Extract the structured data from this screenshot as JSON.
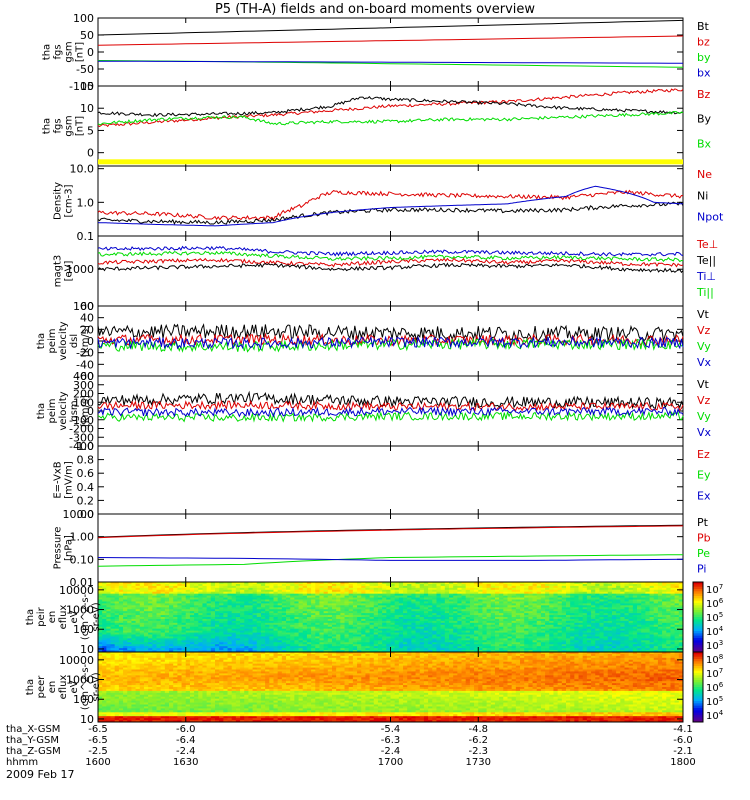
{
  "title": "P5 (TH-A) fields and on-board moments overview",
  "date_label": "2009 Feb 17",
  "colors": {
    "black": "#000000",
    "red": "#dd0000",
    "green": "#00dd00",
    "blue": "#0000cc",
    "yellow": "#ffff00"
  },
  "chart_data": [
    {
      "type": "line",
      "panel": "fgs-gsm",
      "ylabel": [
        "tha",
        "fgs",
        "gsm",
        "[nT]"
      ],
      "ylim": [
        -100,
        100
      ],
      "yticks": [
        "100",
        "50",
        "0",
        "-50",
        "-100"
      ],
      "ytick_values": [
        100,
        50,
        0,
        -50,
        -100
      ],
      "series": [
        {
          "name": "Bt",
          "color": "#000000",
          "x": [
            1600,
            1800
          ],
          "y": [
            50,
            93
          ]
        },
        {
          "name": "bz",
          "color": "#dd0000",
          "x": [
            1600,
            1800
          ],
          "y": [
            20,
            47
          ]
        },
        {
          "name": "by",
          "color": "#00dd00",
          "x": [
            1600,
            1640,
            1800
          ],
          "y": [
            -25,
            -28,
            -45
          ]
        },
        {
          "name": "bx",
          "color": "#0000cc",
          "x": [
            1600,
            1800
          ],
          "y": [
            -27,
            -33
          ]
        }
      ]
    },
    {
      "type": "line",
      "panel": "fgs-gsm-zoom",
      "ylabel": [
        "tha",
        "fgs",
        "gsm",
        "[nT]"
      ],
      "ylim": [
        -3,
        15
      ],
      "yticks": [
        "15",
        "10",
        "5",
        "0"
      ],
      "ytick_values": [
        15,
        10,
        5,
        0
      ],
      "series": [
        {
          "name": "Bz",
          "color": "#dd0000",
          "x": [
            1600,
            1640,
            1660,
            1680,
            1700,
            1720,
            1740,
            1760,
            1780,
            1800
          ],
          "y": [
            6.0,
            7.8,
            8.5,
            9.5,
            10.5,
            11.0,
            11.5,
            12.5,
            13.5,
            14.2
          ]
        },
        {
          "name": "By",
          "color": "#000000",
          "x": [
            1600,
            1620,
            1640,
            1660,
            1680,
            1690,
            1700,
            1720,
            1740,
            1760,
            1780,
            1800
          ],
          "y": [
            9.0,
            8.5,
            8.7,
            9.0,
            10.5,
            12.5,
            12.0,
            11.5,
            11.0,
            10.0,
            9.5,
            9.0
          ]
        },
        {
          "name": "Bx",
          "color": "#00dd00",
          "x": [
            1600,
            1620,
            1640,
            1650,
            1660,
            1680,
            1700,
            1720,
            1740,
            1760,
            1780,
            1800
          ],
          "y": [
            6.5,
            7.5,
            8.0,
            8.0,
            6.5,
            7.0,
            7.0,
            7.5,
            7.5,
            8.0,
            8.5,
            9.0
          ]
        }
      ],
      "legend": [
        "Bz",
        "By",
        "Bx"
      ]
    },
    {
      "type": "line",
      "panel": "density",
      "scale": "log",
      "ylabel": [
        "Density",
        "[cm-3]"
      ],
      "ylim": [
        0.1,
        12
      ],
      "yticks": [
        "10.0",
        "1.0",
        "0.1"
      ],
      "ytick_values": [
        10,
        1,
        0.1
      ],
      "series": [
        {
          "name": "Ne",
          "color": "#dd0000",
          "x": [
            1600,
            1620,
            1640,
            1660,
            1670,
            1680,
            1700,
            1720,
            1740,
            1760,
            1780,
            1800
          ],
          "y": [
            0.5,
            0.45,
            0.35,
            0.35,
            0.8,
            2.0,
            1.8,
            1.6,
            1.5,
            1.4,
            2.0,
            1.5
          ]
        },
        {
          "name": "Ni",
          "color": "#000000",
          "x": [
            1600,
            1620,
            1640,
            1660,
            1680,
            1700,
            1720,
            1740,
            1760,
            1780,
            1800
          ],
          "y": [
            0.3,
            0.27,
            0.25,
            0.3,
            0.5,
            0.6,
            0.6,
            0.55,
            0.6,
            0.8,
            0.9
          ]
        },
        {
          "name": "Npot",
          "color": "#0000cc",
          "x": [
            1600,
            1620,
            1640,
            1660,
            1680,
            1700,
            1720,
            1740,
            1760,
            1770,
            1790,
            1800
          ],
          "y": [
            0.25,
            0.22,
            0.2,
            0.25,
            0.5,
            0.7,
            0.8,
            0.9,
            1.5,
            3.0,
            1.0,
            0.9
          ]
        }
      ]
    },
    {
      "type": "line",
      "panel": "temperature",
      "scale": "log",
      "ylabel": [
        "magt3",
        "[eV]"
      ],
      "ylim": [
        100,
        8000
      ],
      "yticks": [
        "1000",
        "100"
      ],
      "ytick_values": [
        1000,
        100
      ],
      "series": [
        {
          "name": "Te⊥",
          "color": "#dd0000",
          "x": [
            1600,
            1640,
            1660,
            1680,
            1700,
            1720,
            1740,
            1760,
            1780,
            1800
          ],
          "y": [
            1500,
            1800,
            1500,
            1300,
            1600,
            1800,
            1500,
            1700,
            1400,
            1300
          ]
        },
        {
          "name": "Te||",
          "color": "#000000",
          "x": [
            1600,
            1640,
            1660,
            1680,
            1700,
            1720,
            1740,
            1760,
            1780,
            1800
          ],
          "y": [
            1000,
            1200,
            1300,
            1000,
            1100,
            1300,
            1200,
            1300,
            1000,
            900
          ]
        },
        {
          "name": "Ti⊥",
          "color": "#0000cc",
          "x": [
            1600,
            1640,
            1660,
            1680,
            1700,
            1720,
            1740,
            1760,
            1780,
            1800
          ],
          "y": [
            3500,
            3800,
            3000,
            2600,
            2800,
            3000,
            2800,
            2700,
            2500,
            2600
          ]
        },
        {
          "name": "Ti||",
          "color": "#00dd00",
          "x": [
            1600,
            1640,
            1660,
            1680,
            1700,
            1720,
            1740,
            1760,
            1780,
            1800
          ],
          "y": [
            2500,
            2800,
            2300,
            1900,
            2000,
            2200,
            2000,
            2100,
            1900,
            1800
          ]
        }
      ]
    },
    {
      "type": "line",
      "panel": "peim-dsl",
      "ylabel": [
        "tha",
        "peim",
        "velocity",
        "dsl",
        "[km/s]"
      ],
      "ylim": [
        -60,
        60
      ],
      "yticks": [
        "60",
        "40",
        "20",
        "0",
        "-20",
        "-40",
        "-60"
      ],
      "ytick_values": [
        60,
        40,
        20,
        0,
        -20,
        -40,
        -60
      ],
      "series": [
        {
          "name": "Vt",
          "color": "#000000",
          "x": [
            1600,
            1650,
            1700,
            1750,
            1800
          ],
          "y": [
            15,
            17,
            14,
            13,
            12
          ]
        },
        {
          "name": "Vz",
          "color": "#dd0000",
          "x": [
            1600,
            1650,
            1700,
            1750,
            1800
          ],
          "y": [
            2,
            3,
            1,
            2,
            2
          ]
        },
        {
          "name": "Vy",
          "color": "#00dd00",
          "x": [
            1600,
            1650,
            1700,
            1750,
            1800
          ],
          "y": [
            -8,
            -10,
            -6,
            -5,
            -6
          ]
        },
        {
          "name": "Vx",
          "color": "#0000cc",
          "x": [
            1600,
            1650,
            1700,
            1750,
            1800
          ],
          "y": [
            -3,
            -4,
            -2,
            -2,
            -3
          ]
        }
      ]
    },
    {
      "type": "line",
      "panel": "peim-gsm",
      "ylabel": [
        "tha",
        "peim",
        "velocity",
        "gsm",
        "[km/s]"
      ],
      "ylim": [
        -400,
        400
      ],
      "yticks": [
        "400",
        "300",
        "200",
        "100",
        "0",
        "-100",
        "-200",
        "-300",
        "-400"
      ],
      "ytick_values": [
        400,
        300,
        200,
        100,
        0,
        -100,
        -200,
        -300,
        -400
      ],
      "series": [
        {
          "name": "Vt",
          "color": "#000000",
          "x": [
            1600,
            1650,
            1700,
            1750,
            1800
          ],
          "y": [
            120,
            150,
            110,
            100,
            90
          ]
        },
        {
          "name": "Vz",
          "color": "#dd0000",
          "x": [
            1600,
            1650,
            1700,
            1750,
            1800
          ],
          "y": [
            60,
            70,
            50,
            50,
            50
          ]
        },
        {
          "name": "Vy",
          "color": "#00dd00",
          "x": [
            1600,
            1650,
            1700,
            1750,
            1800
          ],
          "y": [
            -70,
            -80,
            -60,
            -60,
            -60
          ]
        },
        {
          "name": "Vx",
          "color": "#0000cc",
          "x": [
            1600,
            1650,
            1700,
            1750,
            1800
          ],
          "y": [
            -10,
            -20,
            -5,
            -5,
            -5
          ]
        }
      ]
    },
    {
      "type": "line",
      "panel": "efield",
      "ylabel": [
        "E=-VxB",
        "[mV/m]"
      ],
      "ylim": [
        0,
        1
      ],
      "yticks": [
        "1.0",
        "0.8",
        "0.6",
        "0.4",
        "0.2",
        "0.0"
      ],
      "ytick_values": [
        1,
        0.8,
        0.6,
        0.4,
        0.2,
        0
      ],
      "series": [
        {
          "name": "Ez",
          "color": "#dd0000",
          "x": [],
          "y": []
        },
        {
          "name": "Ey",
          "color": "#00dd00",
          "x": [],
          "y": []
        },
        {
          "name": "Ex",
          "color": "#0000cc",
          "x": [],
          "y": []
        }
      ]
    },
    {
      "type": "line",
      "panel": "pressure",
      "scale": "log",
      "ylabel": [
        "Pressure",
        "[nPa]"
      ],
      "ylim": [
        0.01,
        10
      ],
      "yticks": [
        "10.00",
        "1.00",
        "0.10",
        "0.01"
      ],
      "ytick_values": [
        10,
        1,
        0.1,
        0.01
      ],
      "series": [
        {
          "name": "Pt",
          "color": "#000000",
          "x": [
            1600,
            1800
          ],
          "y": [
            0.95,
            3.2
          ]
        },
        {
          "name": "Pb",
          "color": "#dd0000",
          "x": [
            1600,
            1800
          ],
          "y": [
            0.9,
            3.0
          ]
        },
        {
          "name": "Pe",
          "color": "#00dd00",
          "x": [
            1600,
            1650,
            1700,
            1750,
            1800
          ],
          "y": [
            0.05,
            0.06,
            0.12,
            0.14,
            0.16
          ]
        },
        {
          "name": "Pi",
          "color": "#0000cc",
          "x": [
            1600,
            1650,
            1700,
            1750,
            1800
          ],
          "y": [
            0.12,
            0.11,
            0.09,
            0.09,
            0.1
          ]
        }
      ]
    },
    {
      "type": "heatmap",
      "panel": "peir",
      "scale": "log",
      "ylabel": [
        "tha",
        "peir",
        "en",
        "eflux",
        "eV",
        "(cm^2-s-",
        "sr-eV)"
      ],
      "ylim": [
        7,
        25000
      ],
      "yticks": [
        "10000",
        "1000",
        "100",
        "10"
      ],
      "ytick_values": [
        10000,
        1000,
        100,
        10
      ],
      "colorbar_ticks": [
        "10^7",
        "10^6",
        "10^5",
        "10^4",
        "10^3"
      ],
      "colorbar_range": [
        2.5,
        7.5
      ]
    },
    {
      "type": "heatmap",
      "panel": "peer",
      "scale": "log",
      "ylabel": [
        "tha",
        "peer",
        "en",
        "eflux",
        "eV",
        "(cm^2-s-",
        "sr-eV)"
      ],
      "ylim": [
        7,
        25000
      ],
      "yticks": [
        "10000",
        "1000",
        "100",
        "10"
      ],
      "ytick_values": [
        10000,
        1000,
        100,
        10
      ],
      "colorbar_ticks": [
        "10^8",
        "10^7",
        "10^6",
        "10^5",
        "10^4"
      ],
      "colorbar_range": [
        3.5,
        8.5
      ]
    }
  ],
  "xaxis": {
    "row_labels": [
      "tha_X-GSM",
      "tha_Y-GSM",
      "tha_Z-GSM",
      "hhmm"
    ],
    "columns": [
      {
        "x": 1600,
        "values": [
          "-6.5",
          "-6.5",
          "-2.5",
          "1600"
        ]
      },
      {
        "x": 1630,
        "values": [
          "-6.0",
          "-6.4",
          "-2.4",
          "1630"
        ]
      },
      {
        "x": 1700,
        "values": [
          "-5.4",
          "-6.3",
          "-2.4",
          "1700"
        ]
      },
      {
        "x": 1730,
        "values": [
          "-4.8",
          "-6.2",
          "-2.3",
          "1730"
        ]
      },
      {
        "x": 1800,
        "values": [
          "-4.1",
          "-6.0",
          "-2.1",
          "1800"
        ]
      }
    ]
  }
}
